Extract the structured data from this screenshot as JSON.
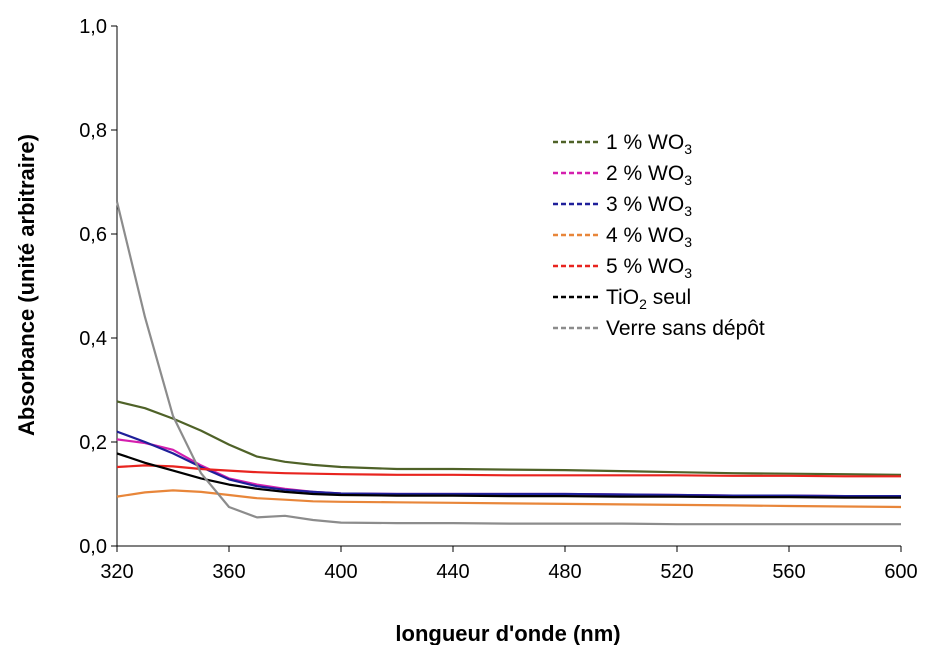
{
  "chart_data": {
    "type": "line",
    "title": "",
    "xlabel": "longueur d'onde (nm)",
    "ylabel": "Absorbance (unité arbitraire)",
    "xlim": [
      320,
      600
    ],
    "ylim": [
      0,
      1
    ],
    "x_ticks": [
      "320",
      "360",
      "400",
      "440",
      "480",
      "520",
      "560",
      "600"
    ],
    "y_ticks": [
      "0,0",
      "0,2",
      "0,4",
      "0,6",
      "0,8",
      "1,0"
    ],
    "grid": false,
    "legend_position": "top-right",
    "x": [
      320,
      330,
      340,
      350,
      360,
      370,
      380,
      390,
      400,
      420,
      440,
      460,
      480,
      500,
      520,
      540,
      560,
      580,
      600
    ],
    "series": [
      {
        "name": "1 % WO",
        "name_subscript": "3",
        "color": "#4f6228",
        "values": [
          0.278,
          0.265,
          0.245,
          0.222,
          0.195,
          0.172,
          0.162,
          0.156,
          0.152,
          0.148,
          0.148,
          0.147,
          0.146,
          0.144,
          0.142,
          0.14,
          0.139,
          0.138,
          0.137
        ]
      },
      {
        "name": "2 % WO",
        "name_subscript": "3",
        "color": "#d41fae",
        "values": [
          0.205,
          0.198,
          0.185,
          0.155,
          0.13,
          0.118,
          0.11,
          0.104,
          0.101,
          0.1,
          0.1,
          0.1,
          0.1,
          0.099,
          0.098,
          0.097,
          0.097,
          0.096,
          0.096
        ]
      },
      {
        "name": "3 % WO",
        "name_subscript": "3",
        "color": "#1f1f9a",
        "values": [
          0.22,
          0.2,
          0.178,
          0.152,
          0.128,
          0.115,
          0.108,
          0.104,
          0.101,
          0.1,
          0.1,
          0.1,
          0.1,
          0.099,
          0.098,
          0.097,
          0.097,
          0.096,
          0.096
        ]
      },
      {
        "name": "4 % WO",
        "name_subscript": "3",
        "color": "#e8863a",
        "values": [
          0.095,
          0.103,
          0.107,
          0.104,
          0.098,
          0.092,
          0.089,
          0.086,
          0.085,
          0.084,
          0.083,
          0.082,
          0.081,
          0.08,
          0.079,
          0.078,
          0.077,
          0.076,
          0.075
        ]
      },
      {
        "name": "5 % WO",
        "name_subscript": "3",
        "color": "#e8241f",
        "values": [
          0.152,
          0.155,
          0.153,
          0.148,
          0.145,
          0.142,
          0.14,
          0.139,
          0.138,
          0.137,
          0.137,
          0.136,
          0.136,
          0.136,
          0.136,
          0.135,
          0.135,
          0.134,
          0.134
        ]
      },
      {
        "name": "TiO",
        "name_subscript": "2",
        "name_suffix": " seul",
        "color": "#000000",
        "values": [
          0.178,
          0.16,
          0.145,
          0.13,
          0.118,
          0.11,
          0.104,
          0.1,
          0.098,
          0.097,
          0.097,
          0.096,
          0.096,
          0.095,
          0.095,
          0.094,
          0.094,
          0.093,
          0.093
        ]
      },
      {
        "name": "Verre sans dépôt",
        "color": "#8c8c8c",
        "values": [
          0.662,
          0.44,
          0.25,
          0.14,
          0.075,
          0.055,
          0.058,
          0.05,
          0.045,
          0.044,
          0.044,
          0.043,
          0.043,
          0.043,
          0.042,
          0.042,
          0.042,
          0.042,
          0.042
        ]
      }
    ]
  }
}
